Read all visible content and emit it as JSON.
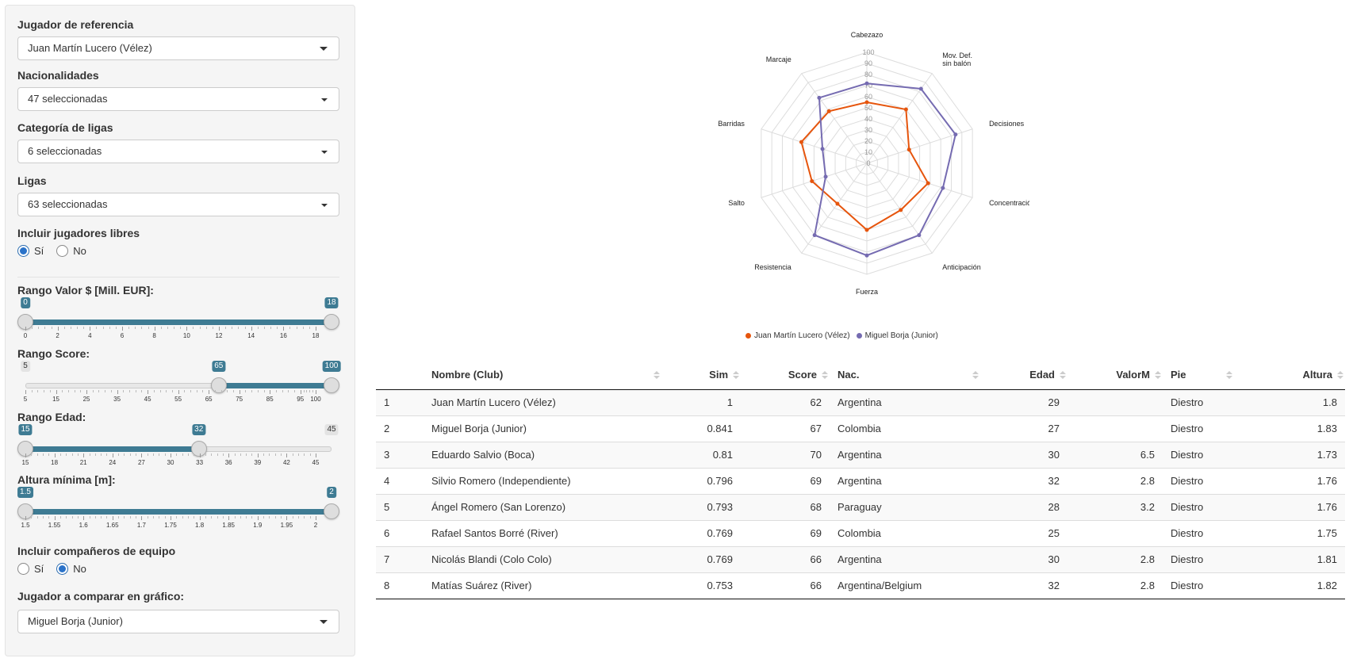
{
  "sidebar": {
    "reference_player": {
      "label": "Jugador de referencia",
      "value": "Juan Martín Lucero (Vélez)"
    },
    "nationalities": {
      "label": "Nacionalidades",
      "value": "47 seleccionadas"
    },
    "league_category": {
      "label": "Categoría de ligas",
      "value": "6 seleccionadas"
    },
    "leagues": {
      "label": "Ligas",
      "value": "63 seleccionadas"
    },
    "free_players": {
      "label": "Incluir jugadores libres",
      "options": [
        "Sí",
        "No"
      ],
      "selected": "Sí"
    },
    "value_range": {
      "label": "Rango Valor $ [Mill. EUR]:",
      "min": 0,
      "max": 18,
      "from": 0,
      "to": 18,
      "ticks": [
        "0",
        "2",
        "4",
        "6",
        "8",
        "10",
        "12",
        "14",
        "16",
        "18"
      ]
    },
    "score_range": {
      "label": "Rango Score:",
      "min": 5,
      "max": 100,
      "from": 65,
      "to": 100,
      "ticks": [
        "5",
        "15",
        "25",
        "35",
        "45",
        "55",
        "65",
        "75",
        "85",
        "95",
        "100"
      ]
    },
    "age_range": {
      "label": "Rango Edad:",
      "min": 15,
      "max": 45,
      "from": 15,
      "to": 32,
      "ticks": [
        "15",
        "18",
        "21",
        "24",
        "27",
        "30",
        "33",
        "36",
        "39",
        "42",
        "45"
      ]
    },
    "min_height": {
      "label": "Altura mínima [m]:",
      "min": 1.5,
      "max": 2,
      "from": 1.5,
      "to": 2,
      "ticks": [
        "1.5",
        "1.55",
        "1.6",
        "1.65",
        "1.7",
        "1.75",
        "1.8",
        "1.85",
        "1.9",
        "1.95",
        "2"
      ]
    },
    "teammates": {
      "label": "Incluir compañeros de equipo",
      "options": [
        "Sí",
        "No"
      ],
      "selected": "No"
    },
    "compare_player": {
      "label": "Jugador a comparar en gráfico:",
      "value": "Miguel Borja (Junior)"
    }
  },
  "chart_data": {
    "type": "radar",
    "axes": [
      "Cabezazo",
      "Mov. Def. sin balón",
      "Decisiones",
      "Concentración",
      "Anticipación",
      "Fuerza",
      "Resistencia",
      "Salto",
      "Barridas",
      "Marcaje"
    ],
    "radial_ticks": [
      "0",
      "10",
      "20",
      "30",
      "40",
      "50",
      "60",
      "70",
      "80",
      "90",
      "100"
    ],
    "range": [
      0,
      100
    ],
    "series": [
      {
        "name": "Juan Martín Lucero (Vélez)",
        "color": "#e6550d",
        "values": [
          55,
          60,
          40,
          58,
          52,
          60,
          45,
          52,
          62,
          58
        ]
      },
      {
        "name": "Miguel Borja (Junior)",
        "color": "#756bb1",
        "values": [
          72,
          83,
          84,
          72,
          80,
          83,
          80,
          39,
          42,
          73
        ]
      }
    ]
  },
  "table": {
    "columns": [
      "",
      "Nombre (Club)",
      "Sim",
      "Score",
      "Nac.",
      "Edad",
      "ValorM",
      "Pie",
      "Altura"
    ],
    "rows": [
      [
        "1",
        "Juan Martín Lucero (Vélez)",
        "1",
        "62",
        "Argentina",
        "29",
        "",
        "Diestro",
        "1.8"
      ],
      [
        "2",
        "Miguel Borja (Junior)",
        "0.841",
        "67",
        "Colombia",
        "27",
        "",
        "Diestro",
        "1.83"
      ],
      [
        "3",
        "Eduardo Salvio (Boca)",
        "0.81",
        "70",
        "Argentina",
        "30",
        "6.5",
        "Diestro",
        "1.73"
      ],
      [
        "4",
        "Silvio Romero (Independiente)",
        "0.796",
        "69",
        "Argentina",
        "32",
        "2.8",
        "Diestro",
        "1.76"
      ],
      [
        "5",
        "Ángel Romero (San Lorenzo)",
        "0.793",
        "68",
        "Paraguay",
        "28",
        "3.2",
        "Diestro",
        "1.76"
      ],
      [
        "6",
        "Rafael Santos Borré (River)",
        "0.769",
        "69",
        "Colombia",
        "25",
        "",
        "Diestro",
        "1.75"
      ],
      [
        "7",
        "Nicolás Blandi (Colo Colo)",
        "0.769",
        "66",
        "Argentina",
        "30",
        "2.8",
        "Diestro",
        "1.81"
      ],
      [
        "8",
        "Matías Suárez (River)",
        "0.753",
        "66",
        "Argentina/Belgium",
        "32",
        "2.8",
        "Diestro",
        "1.82"
      ]
    ]
  }
}
